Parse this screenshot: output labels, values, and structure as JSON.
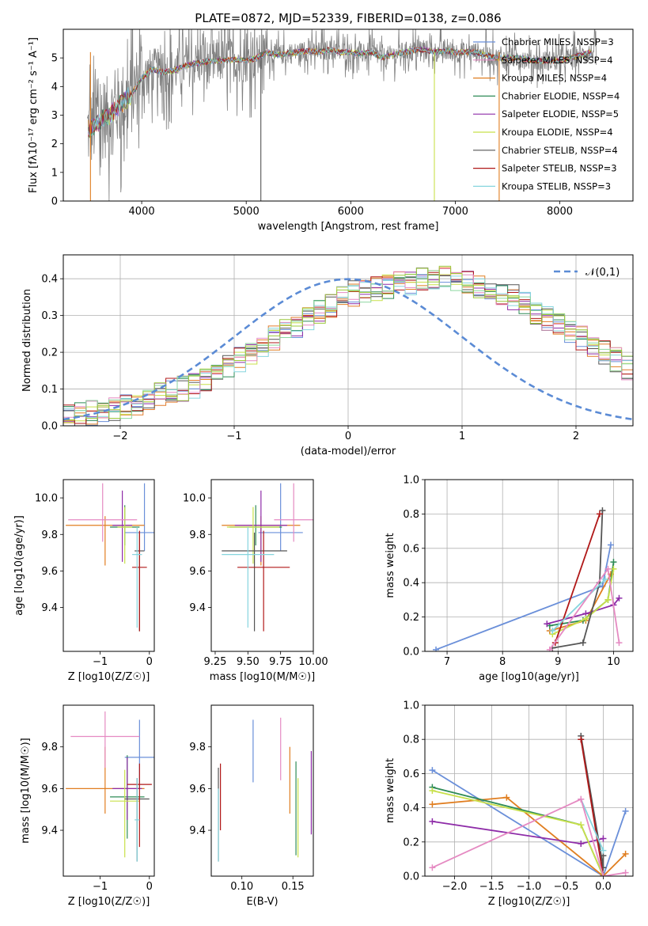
{
  "title": "PLATE=0872, MJD=52339, FIBERID=0138, z=0.086",
  "colors": [
    "#6a8fd9",
    "#e27b2a",
    "#e07e20",
    "#2e8b57",
    "#8e2ca8",
    "#c8e04a",
    "#555555",
    "#b01818",
    "#86d5de",
    "#e58ac2",
    "#8cd6a0",
    "#9cc93b"
  ],
  "chart_data": [
    {
      "id": "spectrum",
      "type": "line",
      "xlabel": "wavelength [Angstrom, rest frame]",
      "ylabel": "Flux [fλ10⁻¹⁷ erg cm⁻² s⁻¹ A⁻¹]",
      "xlim": [
        3250,
        8700
      ],
      "ylim": [
        0,
        6
      ],
      "xticks": [
        4000,
        5000,
        6000,
        7000,
        8000
      ],
      "yticks": [
        0,
        1,
        2,
        3,
        4,
        5
      ],
      "legend_position": "right",
      "legend": [
        {
          "label": "Chabrier MILES, NSSP=3",
          "color": "#6a8fd9"
        },
        {
          "label": "Salpeter MILES, NSSP=4",
          "color": "#e58ac2"
        },
        {
          "label": "Kroupa MILES, NSSP=4",
          "color": "#e07e20"
        },
        {
          "label": "Chabrier ELODIE, NSSP=4",
          "color": "#2e8b57"
        },
        {
          "label": "Salpeter ELODIE, NSSP=5",
          "color": "#8e2ca8"
        },
        {
          "label": "Kroupa ELODIE, NSSP=4",
          "color": "#c8e04a"
        },
        {
          "label": "Chabrier STELIB, NSSP=4",
          "color": "#555555"
        },
        {
          "label": "Salpeter STELIB, NSSP=3",
          "color": "#b01818"
        },
        {
          "label": "Kroupa STELIB, NSSP=3",
          "color": "#86d5de"
        }
      ],
      "model_x": [
        3500,
        3600,
        3700,
        3800,
        3900,
        4000,
        4100,
        4200,
        4300,
        4400,
        4500,
        4600,
        4700,
        4800,
        4900,
        5000,
        5100,
        5200,
        5300,
        5400,
        5500,
        5600,
        5700,
        5800,
        5900,
        6000,
        6100,
        6200,
        6300,
        6400,
        6500,
        6600,
        6700,
        6800,
        6900,
        7000,
        7100,
        7200,
        7300,
        7400,
        7600,
        7800,
        8000,
        8200,
        8300
      ],
      "model_y": [
        2.5,
        2.8,
        3.0,
        3.4,
        3.7,
        4.3,
        4.6,
        4.5,
        4.55,
        4.7,
        4.8,
        4.85,
        4.9,
        4.9,
        4.95,
        4.9,
        5.0,
        5.2,
        5.1,
        5.15,
        5.2,
        5.25,
        5.2,
        5.3,
        5.2,
        5.2,
        5.15,
        5.2,
        5.0,
        5.1,
        5.2,
        5.25,
        5.3,
        5.2,
        5.25,
        5.2,
        5.2,
        5.2,
        5.1,
        5.0,
        5.0,
        4.9,
        4.9,
        5.1,
        5.2
      ]
    },
    {
      "id": "residuals",
      "type": "histogram",
      "xlabel": "(data-model)/error",
      "ylabel": "Normed distribution",
      "xlim": [
        -2.5,
        2.5
      ],
      "ylim": [
        0,
        0.465
      ],
      "xticks": [
        -2,
        -1,
        0,
        1,
        2
      ],
      "yticks": [
        0.0,
        0.1,
        0.2,
        0.3,
        0.4
      ],
      "grid": true,
      "legend_position": "top-right",
      "legend": [
        {
          "label": "𝒩(0,1)",
          "color": "#5b8bd5",
          "style": "dashed"
        }
      ],
      "bin_width": 0.1,
      "bin_start": -2.5,
      "base": [
        0.03,
        0.03,
        0.035,
        0.04,
        0.045,
        0.05,
        0.06,
        0.07,
        0.085,
        0.095,
        0.1,
        0.11,
        0.12,
        0.14,
        0.16,
        0.18,
        0.2,
        0.22,
        0.24,
        0.26,
        0.27,
        0.29,
        0.31,
        0.33,
        0.345,
        0.36,
        0.37,
        0.375,
        0.38,
        0.385,
        0.39,
        0.395,
        0.4,
        0.4,
        0.395,
        0.39,
        0.38,
        0.37,
        0.36,
        0.35,
        0.33,
        0.31,
        0.29,
        0.27,
        0.25,
        0.24,
        0.22,
        0.2,
        0.18,
        0.16
      ]
    },
    {
      "id": "scatter-age-Z",
      "type": "scatter",
      "xlabel": "Z [log10(Z/Z☉)]",
      "ylabel": "age  [log10(age/yr)]",
      "xlim": [
        -1.75,
        0.1
      ],
      "ylim": [
        9.16,
        10.1
      ],
      "xticks": [
        -1,
        0
      ],
      "yticks": [
        9.4,
        9.6,
        9.8,
        10.0
      ],
      "points": [
        {
          "x": -0.1,
          "y": 9.81,
          "xerr": 0.4,
          "yerr": [
            0.1,
            0.27
          ],
          "color": "#6a8fd9"
        },
        {
          "x": -0.9,
          "y": 9.85,
          "xerr": 0.8,
          "yerr": [
            0.22,
            0.05
          ],
          "color": "#e07e20"
        },
        {
          "x": -0.5,
          "y": 9.84,
          "xerr": 0.3,
          "yerr": [
            0.1,
            0.12
          ],
          "color": "#2e8b57"
        },
        {
          "x": -0.55,
          "y": 9.85,
          "xerr": 0.2,
          "yerr": [
            0.2,
            0.19
          ],
          "color": "#8e2ca8"
        },
        {
          "x": -0.5,
          "y": 9.84,
          "xerr": 0.15,
          "yerr": [
            0.2,
            0.11
          ],
          "color": "#c8e04a"
        },
        {
          "x": -0.2,
          "y": 9.71,
          "xerr": 0.1,
          "yerr": [
            0.44,
            0.1
          ],
          "color": "#555555"
        },
        {
          "x": -0.2,
          "y": 9.62,
          "xerr": 0.15,
          "yerr": [
            0.35,
            0.2
          ],
          "color": "#b01818"
        },
        {
          "x": -0.25,
          "y": 9.69,
          "xerr": 0.1,
          "yerr": [
            0.4,
            0.15
          ],
          "color": "#86d5de"
        },
        {
          "x": -0.95,
          "y": 9.88,
          "xerr": 0.7,
          "yerr": [
            0.12,
            0.2
          ],
          "color": "#e58ac2"
        }
      ]
    },
    {
      "id": "scatter-age-mass",
      "type": "scatter",
      "xlabel": "mass [log10(M/M☉)]",
      "ylabel": "",
      "xlim": [
        9.22,
        10.0
      ],
      "ylim": [
        9.16,
        10.1
      ],
      "xticks": [
        9.25,
        9.5,
        9.75,
        10.0
      ],
      "yticks": [
        9.4,
        9.6,
        9.8,
        10.0
      ],
      "points": [
        {
          "x": 9.75,
          "y": 9.81,
          "xerr": 0.17,
          "yerr": [
            0.1,
            0.27
          ],
          "color": "#6a8fd9"
        },
        {
          "x": 9.6,
          "y": 9.85,
          "xerr": 0.3,
          "yerr": [
            0.22,
            0.05
          ],
          "color": "#e07e20"
        },
        {
          "x": 9.56,
          "y": 9.84,
          "xerr": 0.2,
          "yerr": [
            0.1,
            0.12
          ],
          "color": "#2e8b57"
        },
        {
          "x": 9.6,
          "y": 9.85,
          "xerr": 0.2,
          "yerr": [
            0.2,
            0.19
          ],
          "color": "#8e2ca8"
        },
        {
          "x": 9.54,
          "y": 9.84,
          "xerr": 0.2,
          "yerr": [
            0.2,
            0.11
          ],
          "color": "#c8e04a"
        },
        {
          "x": 9.55,
          "y": 9.71,
          "xerr": 0.25,
          "yerr": [
            0.44,
            0.1
          ],
          "color": "#555555"
        },
        {
          "x": 9.62,
          "y": 9.62,
          "xerr": 0.2,
          "yerr": [
            0.35,
            0.2
          ],
          "color": "#b01818"
        },
        {
          "x": 9.5,
          "y": 9.69,
          "xerr": 0.2,
          "yerr": [
            0.4,
            0.15
          ],
          "color": "#86d5de"
        },
        {
          "x": 9.85,
          "y": 9.88,
          "xerr": 0.15,
          "yerr": [
            0.12,
            0.2
          ],
          "color": "#e58ac2"
        }
      ]
    },
    {
      "id": "weight-age",
      "type": "line",
      "xlabel": "age  [log10(age/yr)]",
      "ylabel": "mass weight",
      "xlim": [
        6.6,
        10.35
      ],
      "ylim": [
        0,
        1.0
      ],
      "xticks": [
        7,
        8,
        9,
        10
      ],
      "yticks": [
        0.0,
        0.2,
        0.4,
        0.6,
        0.8,
        1.0
      ],
      "grid": true,
      "series": [
        {
          "color": "#6a8fd9",
          "x": [
            6.8,
            9.8,
            9.95
          ],
          "y": [
            0.01,
            0.38,
            0.62
          ]
        },
        {
          "color": "#e07e20",
          "x": [
            8.85,
            9.5,
            9.95
          ],
          "y": [
            0.12,
            0.18,
            0.45
          ]
        },
        {
          "color": "#2e8b57",
          "x": [
            8.85,
            9.45,
            9.9,
            10.0
          ],
          "y": [
            0.15,
            0.18,
            0.3,
            0.52
          ]
        },
        {
          "color": "#8e2ca8",
          "x": [
            8.8,
            9.5,
            10.0,
            10.1
          ],
          "y": [
            0.16,
            0.22,
            0.27,
            0.31
          ]
        },
        {
          "color": "#c8e04a",
          "x": [
            8.9,
            9.5,
            9.9,
            10.0
          ],
          "y": [
            0.1,
            0.19,
            0.3,
            0.48
          ]
        },
        {
          "color": "#555555",
          "x": [
            8.9,
            9.45,
            9.75,
            9.8
          ],
          "y": [
            0.02,
            0.05,
            0.4,
            0.82
          ]
        },
        {
          "color": "#b01818",
          "x": [
            8.95,
            9.75
          ],
          "y": [
            0.05,
            0.8
          ]
        },
        {
          "color": "#86d5de",
          "x": [
            8.9,
            9.85
          ],
          "y": [
            0.12,
            0.42
          ]
        },
        {
          "color": "#e58ac2",
          "x": [
            8.85,
            9.9,
            10.1
          ],
          "y": [
            0.01,
            0.48,
            0.05
          ]
        }
      ]
    },
    {
      "id": "scatter-mass-Z",
      "type": "scatter",
      "xlabel": "Z [log10(Z/Z☉)]",
      "ylabel": "mass [log10(M/M☉)]",
      "xlim": [
        -1.75,
        0.1
      ],
      "ylim": [
        9.18,
        10.0
      ],
      "xticks": [
        -1,
        0
      ],
      "yticks": [
        9.4,
        9.6,
        9.8
      ],
      "points": [
        {
          "x": -0.2,
          "y": 9.75,
          "xerr": 0.3,
          "yerr": [
            0.15,
            0.18
          ],
          "color": "#6a8fd9"
        },
        {
          "x": -0.9,
          "y": 9.6,
          "xerr": 0.8,
          "yerr": [
            0.12,
            0.2
          ],
          "color": "#e07e20"
        },
        {
          "x": -0.45,
          "y": 9.56,
          "xerr": 0.35,
          "yerr": [
            0.2,
            0.2
          ],
          "color": "#2e8b57"
        },
        {
          "x": -0.45,
          "y": 9.6,
          "xerr": 0.3,
          "yerr": [
            0.15,
            0.15
          ],
          "color": "#8e2ca8"
        },
        {
          "x": -0.5,
          "y": 9.54,
          "xerr": 0.3,
          "yerr": [
            0.27,
            0.15
          ],
          "color": "#c8e04a"
        },
        {
          "x": -0.25,
          "y": 9.55,
          "xerr": 0.25,
          "yerr": [
            0.3,
            0.1
          ],
          "color": "#555555"
        },
        {
          "x": -0.2,
          "y": 9.62,
          "xerr": 0.25,
          "yerr": [
            0.3,
            0.1
          ],
          "color": "#b01818"
        },
        {
          "x": -0.25,
          "y": 9.45,
          "xerr": 0.05,
          "yerr": [
            0.2,
            0.2
          ],
          "color": "#86d5de"
        },
        {
          "x": -0.9,
          "y": 9.85,
          "xerr": 0.7,
          "yerr": [
            0.15,
            0.12
          ],
          "color": "#e58ac2"
        }
      ]
    },
    {
      "id": "ebv-vs-mass",
      "type": "errorbar",
      "xlabel": "E(B-V)",
      "ylabel": "",
      "xlim": [
        0.07,
        0.17
      ],
      "ylim": [
        9.18,
        10.0
      ],
      "xticks": [
        0.1,
        0.15
      ],
      "yticks": [
        9.4,
        9.6,
        9.8
      ],
      "points": [
        {
          "x": 0.111,
          "y": 9.78,
          "yerr": [
            0.15,
            0.15
          ],
          "color": "#6a8fd9"
        },
        {
          "x": 0.147,
          "y": 9.6,
          "yerr": [
            0.12,
            0.2
          ],
          "color": "#e07e20"
        },
        {
          "x": 0.153,
          "y": 9.53,
          "yerr": [
            0.25,
            0.2
          ],
          "color": "#2e8b57"
        },
        {
          "x": 0.168,
          "y": 9.58,
          "yerr": [
            0.2,
            0.2
          ],
          "color": "#8e2ca8"
        },
        {
          "x": 0.155,
          "y": 9.45,
          "yerr": [
            0.18,
            0.2
          ],
          "color": "#c8e04a"
        },
        {
          "x": 0.077,
          "y": 9.5,
          "yerr": [
            0.25,
            0.2
          ],
          "color": "#555555"
        },
        {
          "x": 0.079,
          "y": 9.56,
          "yerr": [
            0.16,
            0.16
          ],
          "color": "#b01818"
        },
        {
          "x": 0.077,
          "y": 9.45,
          "yerr": [
            0.2,
            0.15
          ],
          "color": "#86d5de"
        },
        {
          "x": 0.138,
          "y": 9.79,
          "yerr": [
            0.15,
            0.15
          ],
          "color": "#e58ac2"
        }
      ]
    },
    {
      "id": "weight-Z",
      "type": "line",
      "xlabel": "Z [log10(Z/Z☉)]",
      "ylabel": "mass weight",
      "xlim": [
        -2.4,
        0.4
      ],
      "ylim": [
        0,
        1.0
      ],
      "xticks": [
        -2.0,
        -1.5,
        -1.0,
        -0.5,
        0.0
      ],
      "yticks": [
        0.0,
        0.2,
        0.4,
        0.6,
        0.8,
        1.0
      ],
      "grid": true,
      "series": [
        {
          "color": "#6a8fd9",
          "x": [
            -2.3,
            0.0,
            0.3
          ],
          "y": [
            0.62,
            0.0,
            0.38
          ]
        },
        {
          "color": "#e07e20",
          "x": [
            -2.3,
            -1.3,
            0.0,
            0.3
          ],
          "y": [
            0.42,
            0.46,
            0.0,
            0.13
          ]
        },
        {
          "color": "#2e8b57",
          "x": [
            -2.3,
            -0.3,
            0.0
          ],
          "y": [
            0.52,
            0.3,
            0.0
          ]
        },
        {
          "color": "#8e2ca8",
          "x": [
            -2.3,
            -0.3,
            0.0
          ],
          "y": [
            0.32,
            0.19,
            0.22
          ]
        },
        {
          "color": "#c8e04a",
          "x": [
            -2.3,
            -0.3,
            0.0
          ],
          "y": [
            0.5,
            0.3,
            0.0
          ]
        },
        {
          "color": "#555555",
          "x": [
            -0.3,
            0.0,
            0.0
          ],
          "y": [
            0.82,
            0.05,
            0.12
          ]
        },
        {
          "color": "#b01818",
          "x": [
            -0.3,
            0.0
          ],
          "y": [
            0.8,
            0.0
          ]
        },
        {
          "color": "#86d5de",
          "x": [
            -0.3,
            0.0
          ],
          "y": [
            0.45,
            0.15
          ]
        },
        {
          "color": "#e58ac2",
          "x": [
            -2.3,
            -0.3,
            0.0,
            0.3
          ],
          "y": [
            0.05,
            0.45,
            0.0,
            0.02
          ]
        }
      ]
    }
  ]
}
